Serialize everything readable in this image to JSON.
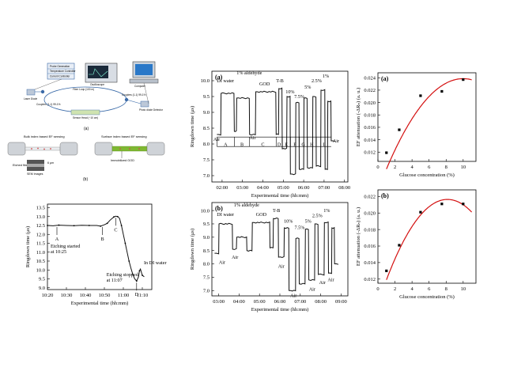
{
  "colors": {
    "fit_line": "#d41010",
    "trace": "#111111",
    "fiber_green": "#7fb832",
    "fiber_red": "#d24a4a",
    "diagram_blue": "#3a6aa8"
  },
  "setup": {
    "label": "(a)",
    "blocks": [
      "Probe Generation",
      "Temperature Controller",
      "Current Controller",
      "Laser Diode",
      "Couplers (1-1) 99-1%",
      "Fiber Loop (100 m)",
      "Sensor Head (~10 cm)",
      "Oscilloscope",
      "Computer",
      "Photo diode Detector",
      "Couplers (1-1) 99-1%"
    ]
  },
  "sensing": {
    "label": "(b)",
    "left_title": "Bulk index based EF sensing",
    "right_title": "Surface index based EF sensing",
    "etched_label": "Etched fiber core",
    "sem_label": "SEM images",
    "scale_label": "6 μm",
    "god_label": "Immobilized GOD"
  },
  "chart_data": [
    {
      "id": "etching",
      "type": "line",
      "title": "",
      "xlabel": "Experimental time (hh:mm)",
      "ylabel": "Ringdown time (μs)",
      "x_ticks": [
        "10:20",
        "10:30",
        "10:40",
        "10:50",
        "11:00",
        "11:10"
      ],
      "y_ticks": [
        "9.0",
        "9.5",
        "10.0",
        "10.5",
        "11.0",
        "11.5",
        "12.0",
        "12.5",
        "13.0",
        "13.5"
      ],
      "xlim": [
        20,
        75
      ],
      "ylim": [
        8.9,
        13.7
      ],
      "x": [
        20,
        23,
        26,
        30,
        34,
        38,
        42,
        46,
        48,
        50,
        51.5,
        53,
        55,
        56,
        57,
        58,
        59,
        60,
        61,
        62,
        63,
        64,
        65,
        66,
        67,
        68,
        68.5,
        69,
        70,
        71
      ],
      "y": [
        12.5,
        12.48,
        12.52,
        12.5,
        12.49,
        12.51,
        12.5,
        12.5,
        12.46,
        12.54,
        12.62,
        12.8,
        12.98,
        13.02,
        13.0,
        12.9,
        12.5,
        12.0,
        11.5,
        11.0,
        10.5,
        10.1,
        9.75,
        9.5,
        9.38,
        9.62,
        9.95,
        10.05,
        9.7,
        9.62
      ],
      "annotations": [
        {
          "letter": "A",
          "text": "Etching started at 10:25",
          "at": [
            25,
            12.5
          ]
        },
        {
          "letter": "B",
          "text": "",
          "at": [
            49,
            12.5
          ]
        },
        {
          "letter": "C",
          "text": "",
          "at": [
            56,
            13.02
          ]
        },
        {
          "letter": "D",
          "text": "Etching stopped at 11:07",
          "at": [
            67,
            9.38
          ]
        },
        {
          "letter": "",
          "text": "In DI water",
          "at": [
            70,
            9.7
          ]
        }
      ]
    },
    {
      "id": "ringdown_a",
      "label": "(a)",
      "type": "line",
      "xlabel": "Experimental time (hh:mm)",
      "ylabel": "Ringdown time (μs)",
      "x_ticks": [
        "02:00",
        "03:00",
        "04:00",
        "05:00",
        "06:00",
        "07:00",
        "08:00"
      ],
      "y_ticks": [
        "7.0",
        "7.5",
        "8.0",
        "8.5",
        "9.0",
        "9.5",
        "10.0"
      ],
      "xlim": [
        90,
        490
      ],
      "ylim": [
        6.8,
        10.3
      ],
      "segments": [
        {
          "x0": 105,
          "x1": 116,
          "y": 8.3
        },
        {
          "x0": 117,
          "x1": 155,
          "y": 9.6
        },
        {
          "x0": 156,
          "x1": 162,
          "y": 8.4
        },
        {
          "x0": 163,
          "x1": 200,
          "y": 9.45
        },
        {
          "x0": 201,
          "x1": 218,
          "y": 8.3
        },
        {
          "x0": 219,
          "x1": 278,
          "y": 9.65
        },
        {
          "x0": 279,
          "x1": 286,
          "y": 8.3
        },
        {
          "x0": 287,
          "x1": 296,
          "y": 9.75
        },
        {
          "x0": 297,
          "x1": 310,
          "y": 7.85
        },
        {
          "x0": 311,
          "x1": 320,
          "y": 9.5
        },
        {
          "x0": 321,
          "x1": 336,
          "y": 7.05
        },
        {
          "x0": 337,
          "x1": 346,
          "y": 9.3
        },
        {
          "x0": 347,
          "x1": 360,
          "y": 7.2
        },
        {
          "x0": 361,
          "x1": 370,
          "y": 9.45
        },
        {
          "x0": 371,
          "x1": 386,
          "y": 7.25
        },
        {
          "x0": 387,
          "x1": 396,
          "y": 9.5
        },
        {
          "x0": 397,
          "x1": 410,
          "y": 7.3
        },
        {
          "x0": 411,
          "x1": 422,
          "y": 9.7
        },
        {
          "x0": 423,
          "x1": 430,
          "y": 7.2
        },
        {
          "x0": 431,
          "x1": 440,
          "y": 9.35
        },
        {
          "x0": 441,
          "x1": 452,
          "y": 8.1
        }
      ],
      "labels": [
        {
          "text": "DI water",
          "at": [
            130,
            9.95
          ]
        },
        {
          "text": "1% aldehyde",
          "at": [
            200,
            10.2
          ]
        },
        {
          "text": "GOD",
          "at": [
            245,
            9.85
          ]
        },
        {
          "text": "T-B",
          "at": [
            290,
            9.95
          ]
        },
        {
          "text": "10%",
          "at": [
            320,
            9.6
          ]
        },
        {
          "text": "7.5%",
          "at": [
            347,
            9.45
          ]
        },
        {
          "text": "5%",
          "at": [
            372,
            9.75
          ]
        },
        {
          "text": "2.5%",
          "at": [
            398,
            9.95
          ]
        },
        {
          "text": "1%",
          "at": [
            425,
            10.1
          ]
        },
        {
          "text": "Air",
          "at": [
            104,
            8.1
          ]
        },
        {
          "text": "Air",
          "at": [
            210,
            8.15
          ]
        },
        {
          "text": "Air",
          "at": [
            455,
            8.05
          ]
        }
      ],
      "regions": [
        "A",
        "B",
        "C",
        "D",
        "E",
        "F",
        "G",
        "H",
        "I"
      ]
    },
    {
      "id": "ringdown_b",
      "label": "(b)",
      "type": "line",
      "xlabel": "Experimental time (hh:mm)",
      "ylabel": "Ringdown time (μs)",
      "x_ticks": [
        "03:00",
        "04:00",
        "05:00",
        "06:00",
        "07:00",
        "08:00",
        "09:00"
      ],
      "y_ticks": [
        "7.0",
        "7.5",
        "8.0",
        "8.5",
        "9.0",
        "9.5",
        "10.0"
      ],
      "xlim": [
        160,
        560
      ],
      "ylim": [
        6.8,
        10.3
      ],
      "segments": [
        {
          "x0": 168,
          "x1": 180,
          "y": 8.4
        },
        {
          "x0": 181,
          "x1": 220,
          "y": 9.5
        },
        {
          "x0": 221,
          "x1": 232,
          "y": 8.55
        },
        {
          "x0": 233,
          "x1": 262,
          "y": 9.0
        },
        {
          "x0": 263,
          "x1": 278,
          "y": 8.5
        },
        {
          "x0": 279,
          "x1": 330,
          "y": 9.55
        },
        {
          "x0": 331,
          "x1": 340,
          "y": 8.6
        },
        {
          "x0": 341,
          "x1": 355,
          "y": 9.7
        },
        {
          "x0": 356,
          "x1": 372,
          "y": 8.25
        },
        {
          "x0": 373,
          "x1": 386,
          "y": 9.35
        },
        {
          "x0": 387,
          "x1": 406,
          "y": 7.0
        },
        {
          "x0": 407,
          "x1": 416,
          "y": 8.95
        },
        {
          "x0": 417,
          "x1": 434,
          "y": 7.25
        },
        {
          "x0": 435,
          "x1": 444,
          "y": 9.3
        },
        {
          "x0": 445,
          "x1": 462,
          "y": 7.4
        },
        {
          "x0": 463,
          "x1": 472,
          "y": 9.5
        },
        {
          "x0": 473,
          "x1": 490,
          "y": 7.6
        },
        {
          "x0": 491,
          "x1": 502,
          "y": 9.55
        },
        {
          "x0": 503,
          "x1": 512,
          "y": 7.65
        },
        {
          "x0": 513,
          "x1": 520,
          "y": 9.35
        },
        {
          "x0": 521,
          "x1": 532,
          "y": 8.0
        }
      ],
      "labels": [
        {
          "text": "DI water",
          "at": [
            200,
            9.8
          ]
        },
        {
          "text": "1% aldehyde",
          "at": [
            262,
            10.15
          ]
        },
        {
          "text": "GOD",
          "at": [
            305,
            9.8
          ]
        },
        {
          "text": "T-B",
          "at": [
            350,
            9.95
          ]
        },
        {
          "text": "10%",
          "at": [
            385,
            9.55
          ]
        },
        {
          "text": "7.5%",
          "at": [
            418,
            9.3
          ]
        },
        {
          "text": "5%",
          "at": [
            443,
            9.55
          ]
        },
        {
          "text": "2.5%",
          "at": [
            470,
            9.75
          ]
        },
        {
          "text": "1%",
          "at": [
            498,
            9.95
          ]
        },
        {
          "text": "Air",
          "at": [
            190,
            8.0
          ]
        },
        {
          "text": "Air",
          "at": [
            228,
            8.2
          ]
        },
        {
          "text": "Air",
          "at": [
            364,
            7.85
          ]
        },
        {
          "text": "Air",
          "at": [
            400,
            6.75
          ]
        },
        {
          "text": "Air",
          "at": [
            455,
            7.0
          ]
        },
        {
          "text": "Air",
          "at": [
            485,
            7.25
          ]
        },
        {
          "text": "Air",
          "at": [
            510,
            7.35
          ]
        }
      ]
    },
    {
      "id": "ef_a",
      "label": "(a)",
      "type": "scatter",
      "xlabel": "Glucose concentration (%)",
      "ylabel": "EF attenuation (-ΔRₙ) (a. u.)",
      "x_ticks": [
        "0",
        "2",
        "4",
        "6",
        "8",
        "10"
      ],
      "y_ticks": [
        "0.010",
        "0.012",
        "0.014",
        "0.016",
        "0.018",
        "0.020",
        "0.022",
        "0.024"
      ],
      "xlim": [
        0,
        11.5
      ],
      "ylim": [
        0.0105,
        0.0248
      ],
      "x": [
        1,
        2.5,
        5,
        7.5,
        10
      ],
      "y": [
        0.0119,
        0.0156,
        0.0211,
        0.0218,
        0.0237
      ],
      "fit": [
        -0.00018,
        0.0036,
        0.00585
      ]
    },
    {
      "id": "ef_b",
      "label": "(b)",
      "type": "scatter",
      "xlabel": "Glucose concentration (%)",
      "ylabel": "EF attenuation (-ΔRₙ) (a. u.)",
      "x_ticks": [
        "0",
        "2",
        "4",
        "6",
        "8",
        "10"
      ],
      "y_ticks": [
        "0.012",
        "0.014",
        "0.016",
        "0.018",
        "0.020",
        "0.022"
      ],
      "xlim": [
        0,
        11.5
      ],
      "ylim": [
        0.0115,
        0.0228
      ],
      "x": [
        1,
        2.5,
        5,
        7.5,
        10
      ],
      "y": [
        0.013,
        0.0161,
        0.0201,
        0.0211,
        0.0211
      ],
      "fit": [
        -0.00019,
        0.0031,
        0.009
      ]
    }
  ]
}
